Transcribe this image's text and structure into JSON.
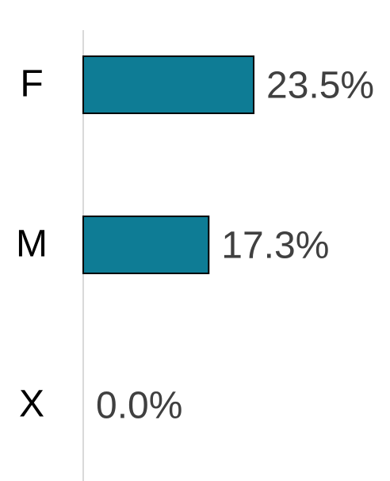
{
  "chart_data": {
    "type": "bar",
    "orientation": "horizontal",
    "categories": [
      "F",
      "M",
      "X"
    ],
    "values": [
      23.5,
      17.3,
      0.0
    ],
    "value_labels": [
      "23.5%",
      "17.3%",
      "0.0%"
    ],
    "color": "#0e7c95",
    "xlim": [
      0,
      42.3
    ]
  }
}
